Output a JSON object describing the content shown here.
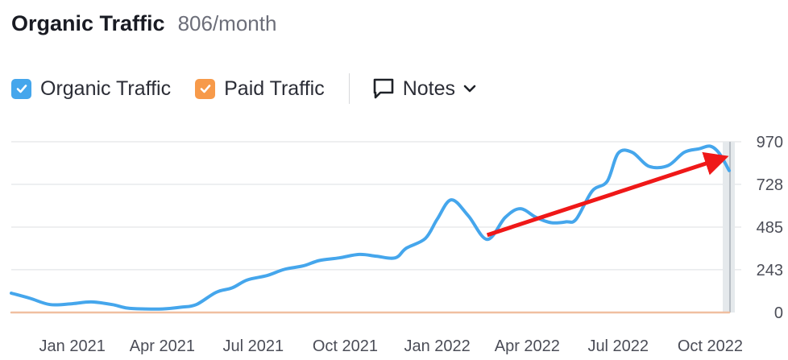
{
  "header": {
    "title": "Organic Traffic",
    "subtitle": "806/month"
  },
  "legend": {
    "items": [
      {
        "label": "Organic Traffic",
        "color": "#45a6ec",
        "checked": true
      },
      {
        "label": "Paid Traffic",
        "color": "#f79a4a",
        "checked": true
      }
    ],
    "notes_label": "Notes"
  },
  "chart_data": {
    "type": "line",
    "title": "",
    "xlabel": "",
    "ylabel": "",
    "grid": true,
    "ylim": [
      0,
      970
    ],
    "yticks": [
      0,
      243,
      485,
      728,
      970
    ],
    "ytick_labels": [
      "0",
      "243",
      "485",
      "728",
      "970"
    ],
    "xlim": [
      "2020-11-01",
      "2022-10-20"
    ],
    "xtick_labels": [
      "Jan 2021",
      "Apr 2021",
      "Jul 2021",
      "Oct 2021",
      "Jan 2022",
      "Apr 2022",
      "Jul 2022",
      "Oct 2022"
    ],
    "xtick_dates": [
      "2021-01-01",
      "2021-04-01",
      "2021-07-01",
      "2021-10-01",
      "2022-01-01",
      "2022-04-01",
      "2022-07-01",
      "2022-10-01"
    ],
    "series": [
      {
        "name": "Organic Traffic",
        "color": "#45a6ec",
        "points": [
          [
            "2020-11-01",
            110
          ],
          [
            "2020-11-20",
            80
          ],
          [
            "2020-12-10",
            45
          ],
          [
            "2021-01-01",
            50
          ],
          [
            "2021-01-20",
            60
          ],
          [
            "2021-02-10",
            45
          ],
          [
            "2021-02-25",
            25
          ],
          [
            "2021-03-15",
            20
          ],
          [
            "2021-04-01",
            20
          ],
          [
            "2021-04-20",
            30
          ],
          [
            "2021-05-05",
            45
          ],
          [
            "2021-05-25",
            115
          ],
          [
            "2021-06-10",
            140
          ],
          [
            "2021-06-25",
            185
          ],
          [
            "2021-07-15",
            210
          ],
          [
            "2021-08-01",
            245
          ],
          [
            "2021-08-20",
            265
          ],
          [
            "2021-09-05",
            295
          ],
          [
            "2021-09-25",
            310
          ],
          [
            "2021-10-15",
            330
          ],
          [
            "2021-11-01",
            320
          ],
          [
            "2021-11-20",
            310
          ],
          [
            "2021-12-01",
            365
          ],
          [
            "2021-12-20",
            420
          ],
          [
            "2022-01-01",
            530
          ],
          [
            "2022-01-15",
            640
          ],
          [
            "2022-02-01",
            550
          ],
          [
            "2022-02-20",
            415
          ],
          [
            "2022-03-10",
            540
          ],
          [
            "2022-03-25",
            590
          ],
          [
            "2022-04-10",
            540
          ],
          [
            "2022-04-25",
            510
          ],
          [
            "2022-05-10",
            515
          ],
          [
            "2022-05-20",
            530
          ],
          [
            "2022-06-05",
            690
          ],
          [
            "2022-06-20",
            745
          ],
          [
            "2022-07-01",
            905
          ],
          [
            "2022-07-15",
            910
          ],
          [
            "2022-08-01",
            830
          ],
          [
            "2022-08-20",
            835
          ],
          [
            "2022-09-05",
            910
          ],
          [
            "2022-09-20",
            930
          ],
          [
            "2022-10-01",
            945
          ],
          [
            "2022-10-10",
            905
          ],
          [
            "2022-10-20",
            806
          ]
        ]
      },
      {
        "name": "Paid Traffic",
        "color": "#f0bfa0",
        "points": [
          [
            "2020-11-01",
            0
          ],
          [
            "2022-10-20",
            0
          ]
        ]
      }
    ],
    "annotations": [
      {
        "type": "arrow",
        "color": "#ef1818",
        "from": [
          "2022-02-20",
          440
        ],
        "to": [
          "2022-10-15",
          880
        ]
      }
    ]
  }
}
